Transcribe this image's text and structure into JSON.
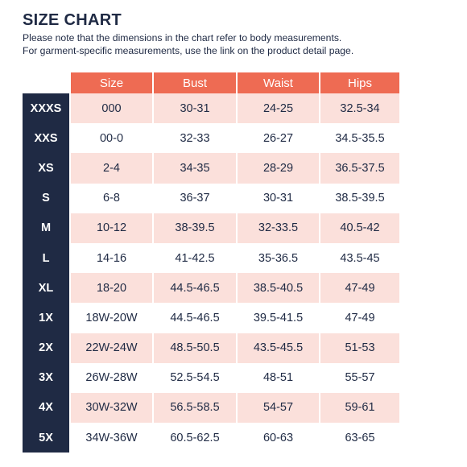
{
  "title": "SIZE CHART",
  "note_line1": "Please note that the dimensions in the chart refer to body measurements.",
  "note_line2": "For garment-specific measurements, use the link on the product detail page.",
  "colors": {
    "header_bg": "#ee6b53",
    "row_label_bg": "#1f2a44",
    "stripe_bg": "#fbe0db"
  },
  "table": {
    "headers": [
      "Size",
      "Bust",
      "Waist",
      "Hips"
    ],
    "rows": [
      {
        "label": "XXXS",
        "size": "000",
        "bust": "30-31",
        "waist": "24-25",
        "hips": "32.5-34"
      },
      {
        "label": "XXS",
        "size": "00-0",
        "bust": "32-33",
        "waist": "26-27",
        "hips": "34.5-35.5"
      },
      {
        "label": "XS",
        "size": "2-4",
        "bust": "34-35",
        "waist": "28-29",
        "hips": "36.5-37.5"
      },
      {
        "label": "S",
        "size": "6-8",
        "bust": "36-37",
        "waist": "30-31",
        "hips": "38.5-39.5"
      },
      {
        "label": "M",
        "size": "10-12",
        "bust": "38-39.5",
        "waist": "32-33.5",
        "hips": "40.5-42"
      },
      {
        "label": "L",
        "size": "14-16",
        "bust": "41-42.5",
        "waist": "35-36.5",
        "hips": "43.5-45"
      },
      {
        "label": "XL",
        "size": "18-20",
        "bust": "44.5-46.5",
        "waist": "38.5-40.5",
        "hips": "47-49"
      },
      {
        "label": "1X",
        "size": "18W-20W",
        "bust": "44.5-46.5",
        "waist": "39.5-41.5",
        "hips": "47-49"
      },
      {
        "label": "2X",
        "size": "22W-24W",
        "bust": "48.5-50.5",
        "waist": "43.5-45.5",
        "hips": "51-53"
      },
      {
        "label": "3X",
        "size": "26W-28W",
        "bust": "52.5-54.5",
        "waist": "48-51",
        "hips": "55-57"
      },
      {
        "label": "4X",
        "size": "30W-32W",
        "bust": "56.5-58.5",
        "waist": "54-57",
        "hips": "59-61"
      },
      {
        "label": "5X",
        "size": "34W-36W",
        "bust": "60.5-62.5",
        "waist": "60-63",
        "hips": "63-65"
      }
    ]
  }
}
